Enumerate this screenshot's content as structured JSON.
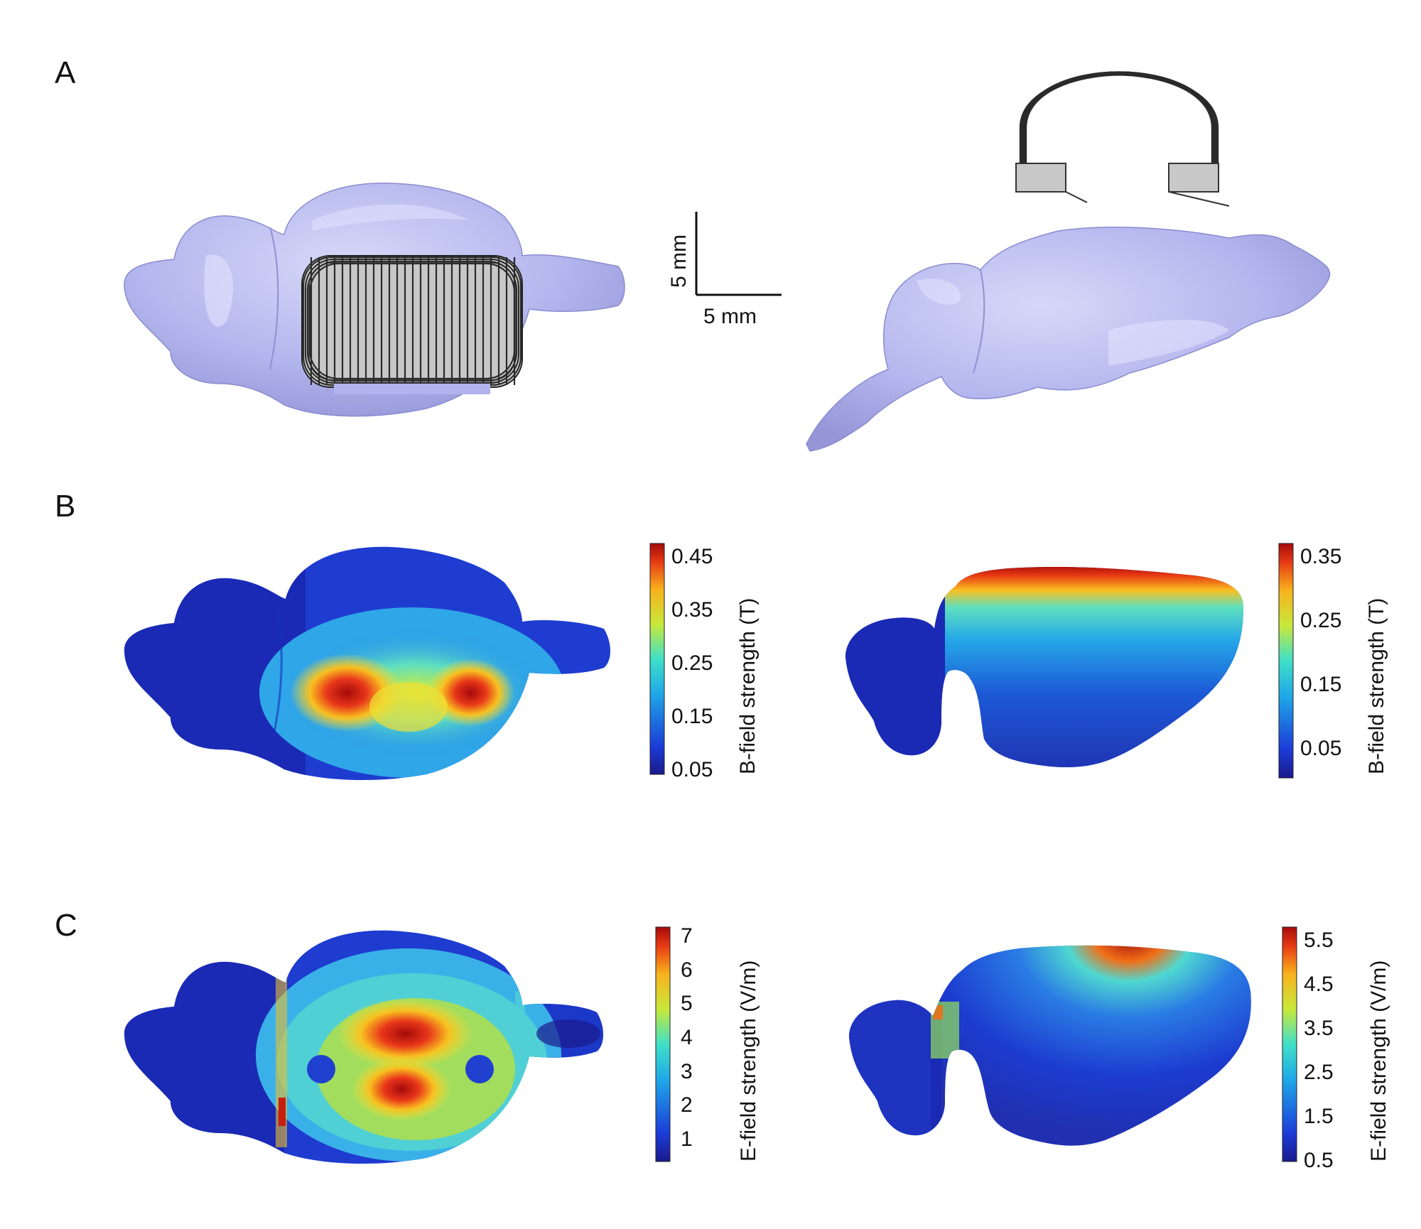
{
  "panels": {
    "a": {
      "letter": "A",
      "scale_bar": {
        "vertical_label": "5 mm",
        "horizontal_label": "5 mm"
      }
    },
    "b": {
      "letter": "B",
      "left_colorbar": {
        "title": "B-field strength (T)",
        "ticks": [
          "0.45",
          "0.35",
          "0.25",
          "0.15",
          "0.05"
        ]
      },
      "right_colorbar": {
        "title": "B-field strength (T)",
        "ticks": [
          "0.35",
          "0.25",
          "0.15",
          "0.05"
        ]
      }
    },
    "c": {
      "letter": "C",
      "left_colorbar": {
        "title": "E-field strength (V/m)",
        "ticks": [
          "7",
          "6",
          "5",
          "4",
          "3",
          "2",
          "1"
        ]
      },
      "right_colorbar": {
        "title": "E-field strength (V/m)",
        "ticks": [
          "5.5",
          "4.5",
          "3.5",
          "2.5",
          "1.5",
          "0.5"
        ]
      }
    }
  },
  "colors": {
    "brain_surface": "#b4b6ee",
    "coil_wire": "#333333",
    "jet_dark_blue": "#1a1a8c",
    "jet_red": "#b50f0f"
  }
}
